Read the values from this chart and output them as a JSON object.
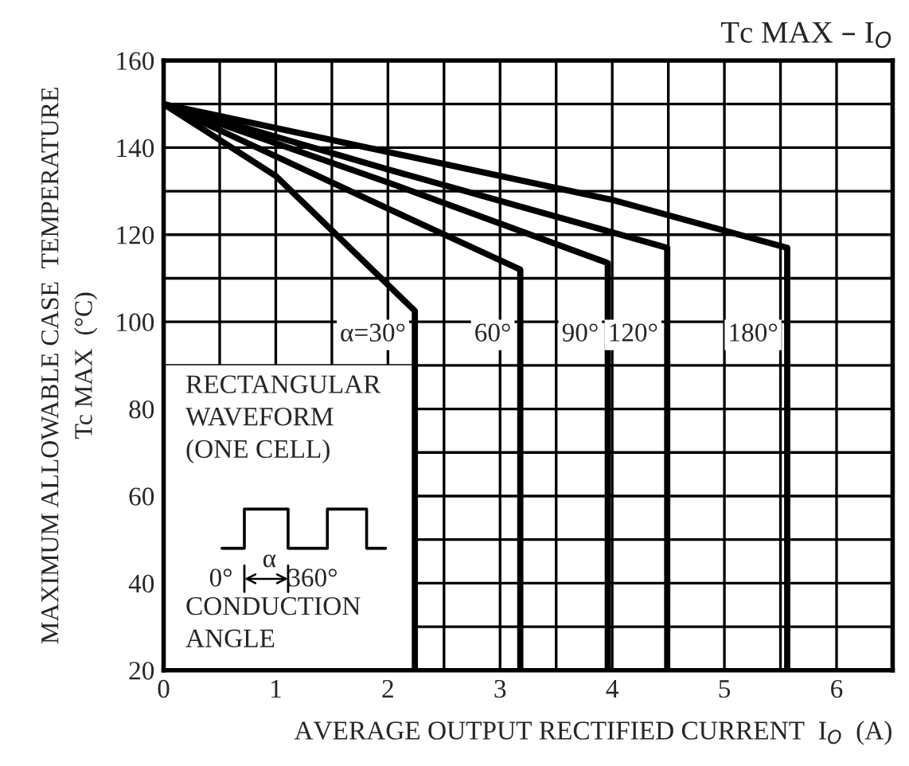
{
  "chart_data": {
    "type": "line",
    "title": "Tc MAX – I$_{O}$",
    "xlabel": "AVERAGE OUTPUT RECTIFIED CURRENT  I$_{O}$  (A)",
    "ylabel": "MAXIMUM ALLOWABLE CASE  TEMPERATURE\nTc MAX  (°C)",
    "series": [
      {
        "name": "α=30°",
        "color": "#000000",
        "x": [
          0,
          1.0,
          2.24,
          2.24
        ],
        "values": [
          150,
          133.5,
          102.5,
          20
        ]
      },
      {
        "name": "60°",
        "color": "#000000",
        "x": [
          0,
          2.0,
          3.18,
          3.18
        ],
        "values": [
          150,
          126,
          112,
          20
        ]
      },
      {
        "name": "90°",
        "color": "#000000",
        "x": [
          0,
          2.0,
          3.96,
          3.96
        ],
        "values": [
          150,
          132,
          113.5,
          20
        ]
      },
      {
        "name": "120°",
        "color": "#000000",
        "x": [
          0,
          2.0,
          4.49,
          4.49
        ],
        "values": [
          150,
          135,
          117,
          20
        ]
      },
      {
        "name": "180°",
        "color": "#000000",
        "x": [
          0,
          4.0,
          5.56,
          5.56
        ],
        "values": [
          150,
          128,
          117,
          20
        ]
      }
    ],
    "xlim": [
      0,
      6.5
    ],
    "xticks": [
      0,
      {
        "value": 0.5,
        "label": null
      },
      1,
      {
        "value": 1.5,
        "label": null
      },
      2,
      {
        "value": 2.5,
        "label": null
      },
      3,
      {
        "value": 3.5,
        "label": null
      },
      4,
      {
        "value": 4.5,
        "label": null
      },
      5,
      {
        "value": 5.5,
        "label": null
      },
      6
    ],
    "ylim": [
      20,
      160
    ],
    "yticks": [
      20,
      {
        "value": 30,
        "label": null
      },
      40,
      {
        "value": 50,
        "label": null
      },
      60,
      {
        "value": 70,
        "label": null
      },
      80,
      {
        "value": 90,
        "label": null
      },
      100,
      {
        "value": 110,
        "label": null
      },
      120,
      {
        "value": 130,
        "label": null
      },
      140,
      {
        "value": 150,
        "label": null
      },
      160
    ],
    "grid": true,
    "marker": "none",
    "line_style": "solid",
    "annotations": [
      "RECTANGULAR\nWAVEFORM\n(ONE CELL)",
      "0°",
      "α",
      "360°",
      "CONDUCTION\nANGLE"
    ]
  }
}
